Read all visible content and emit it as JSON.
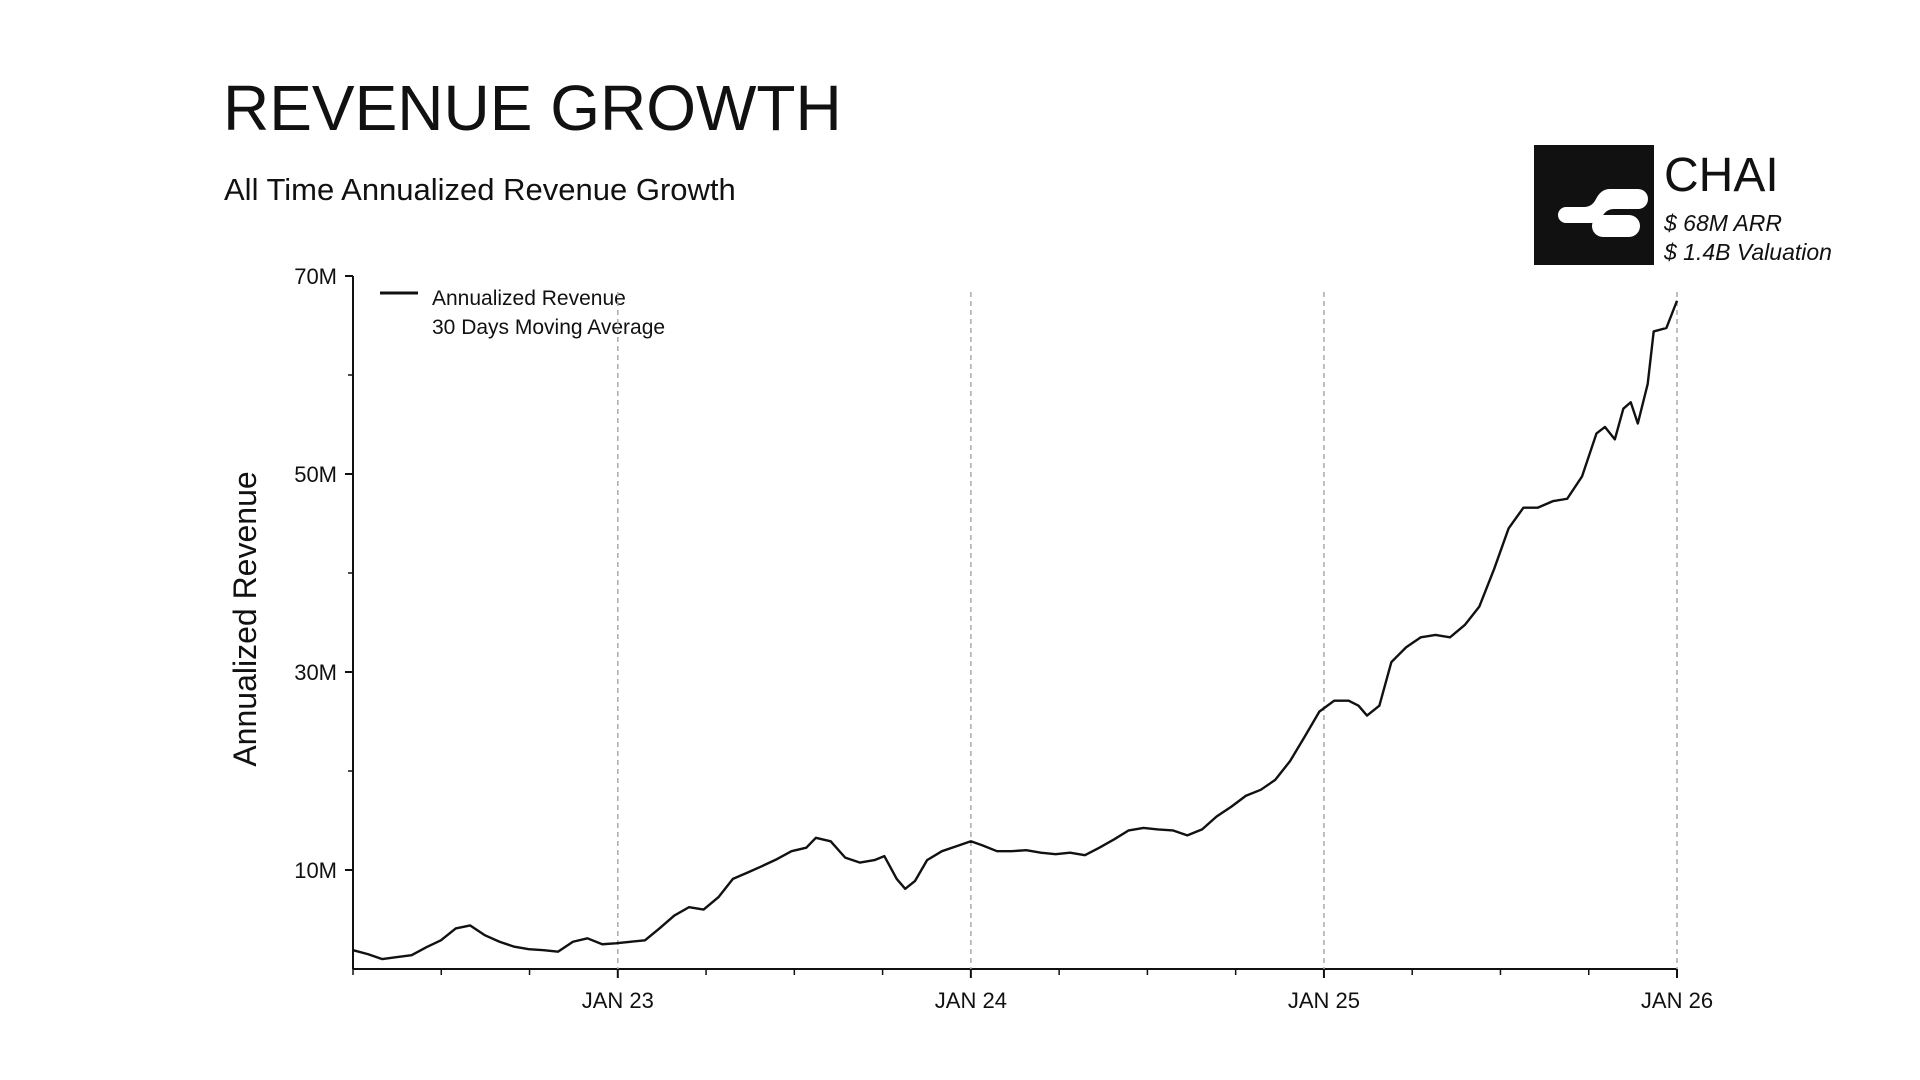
{
  "chart_data": {
    "type": "line",
    "title": "REVENUE GROWTH",
    "subtitle": "All Time Annualized Revenue Growth",
    "y_label": "Annualized Revenue",
    "legend_note": "30 Days Moving Average",
    "badge": {
      "name": "CHAI",
      "lines": [
        "$ 68M ARR",
        "$ 1.4B Valuation"
      ]
    },
    "grid": "x",
    "xlim": [
      2022.25,
      2026
    ],
    "xticks": [
      {
        "value": 2023,
        "label": "JAN 23"
      },
      {
        "value": 2024,
        "label": "JAN 24"
      },
      {
        "value": 2025,
        "label": "JAN 25"
      },
      {
        "value": 2026,
        "label": "JAN 26"
      }
    ],
    "xminor": [
      2022.25,
      2022.5,
      2022.75,
      2023.25,
      2023.5,
      2023.75,
      2024.25,
      2024.5,
      2024.75,
      2025.25,
      2025.5,
      2025.75
    ],
    "ylim": [
      0,
      70
    ],
    "yticks": [
      {
        "value": 10,
        "label": "10M"
      },
      {
        "value": 30,
        "label": "30M"
      },
      {
        "value": 50,
        "label": "50M"
      },
      {
        "value": 70,
        "label": "70M"
      }
    ],
    "yminor": [
      20,
      40,
      60
    ],
    "x": [
      2022.25,
      2022.292,
      2022.333,
      2022.375,
      2022.416,
      2022.458,
      2022.499,
      2022.541,
      2022.582,
      2022.624,
      2022.665,
      2022.707,
      2022.748,
      2022.79,
      2022.831,
      2022.873,
      2022.914,
      2022.956,
      2022.994,
      2023.035,
      2023.077,
      2023.118,
      2023.16,
      2023.202,
      2023.243,
      2023.285,
      2023.326,
      2023.368,
      2023.409,
      2023.451,
      2023.492,
      2023.534,
      2023.561,
      2023.603,
      2023.644,
      2023.686,
      2023.727,
      2023.755,
      2023.79,
      2023.814,
      2023.842,
      2023.876,
      2023.918,
      2023.959,
      2024.0,
      2024.032,
      2024.074,
      2024.115,
      2024.157,
      2024.198,
      2024.24,
      2024.281,
      2024.323,
      2024.364,
      2024.406,
      2024.447,
      2024.489,
      2024.53,
      2024.572,
      2024.613,
      2024.655,
      2024.696,
      2024.738,
      2024.779,
      2024.821,
      2024.862,
      2024.904,
      2024.946,
      2024.987,
      2025.029,
      2025.07,
      2025.098,
      2025.122,
      2025.157,
      2025.191,
      2025.233,
      2025.274,
      2025.316,
      2025.357,
      2025.399,
      2025.44,
      2025.482,
      2025.523,
      2025.565,
      2025.606,
      2025.648,
      2025.689,
      2025.731,
      2025.772,
      2025.796,
      2025.824,
      2025.848,
      2025.869,
      2025.889,
      2025.917,
      2025.934,
      2025.97,
      2026.0
    ],
    "series": [
      {
        "name": "Annualized Revenue",
        "color": "#111111",
        "values": [
          1.9,
          1.5,
          1.0,
          1.2,
          1.4,
          2.2,
          2.9,
          4.1,
          4.4,
          3.4,
          2.75,
          2.25,
          2.0,
          1.9,
          1.75,
          2.75,
          3.1,
          2.5,
          2.6,
          2.75,
          2.9,
          4.1,
          5.4,
          6.25,
          6.0,
          7.25,
          9.1,
          9.75,
          10.4,
          11.1,
          11.9,
          12.25,
          13.25,
          12.9,
          11.25,
          10.75,
          11.0,
          11.4,
          9.1,
          8.1,
          8.9,
          11.0,
          11.9,
          12.4,
          12.9,
          12.5,
          11.9,
          11.9,
          12.0,
          11.75,
          11.6,
          11.75,
          11.5,
          12.25,
          13.1,
          14.0,
          14.25,
          14.1,
          14.0,
          13.5,
          14.1,
          15.4,
          16.4,
          17.5,
          18.1,
          19.1,
          21.0,
          23.5,
          26.0,
          27.1,
          27.1,
          26.6,
          25.6,
          26.6,
          31.0,
          32.5,
          33.5,
          33.75,
          33.5,
          34.75,
          36.6,
          40.4,
          44.5,
          46.6,
          46.6,
          47.25,
          47.5,
          49.75,
          54.1,
          54.75,
          53.5,
          56.6,
          57.25,
          55.1,
          59.1,
          64.4,
          64.75,
          67.5
        ]
      }
    ]
  }
}
